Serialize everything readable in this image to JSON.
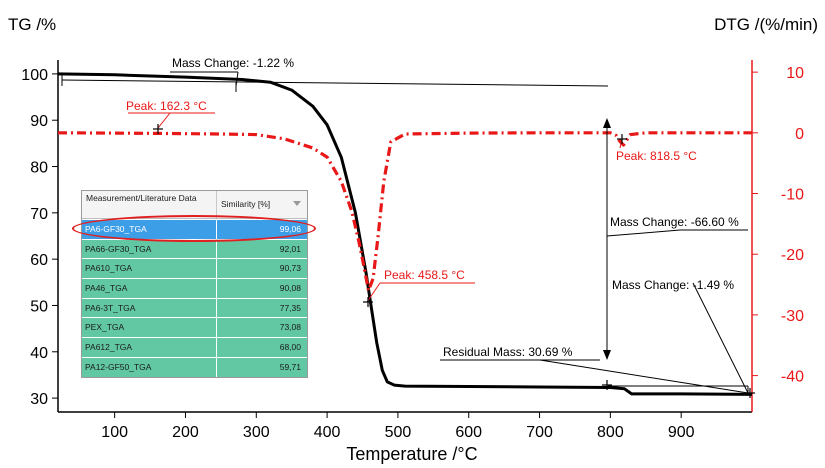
{
  "chart_data": {
    "type": "line",
    "xlabel": "Temperature /°C",
    "ylabel_left": "TG /%",
    "ylabel_right": "DTG /(%/min)",
    "xlim": [
      20,
      1000
    ],
    "ylim_left": [
      27,
      103
    ],
    "ylim_right": [
      -46,
      12
    ],
    "xticks": [
      100,
      200,
      300,
      400,
      500,
      600,
      700,
      800,
      900
    ],
    "yticks_left": [
      30,
      40,
      50,
      60,
      70,
      80,
      90,
      100
    ],
    "yticks_right": [
      -40,
      -30,
      -20,
      -10,
      0,
      10
    ],
    "grid": false,
    "colors": {
      "tg": "#000000",
      "dtg": "#e81818",
      "axis_right": "#e81818"
    },
    "series": [
      {
        "axis": "left",
        "style": "solid",
        "x": [
          20,
          100,
          200,
          280,
          320,
          350,
          380,
          400,
          420,
          440,
          455,
          462,
          470,
          478,
          485,
          495,
          510,
          600,
          700,
          800,
          820,
          830,
          900,
          1000
        ],
        "y": [
          100,
          99.8,
          99.3,
          98.8,
          98.2,
          96.5,
          93,
          89,
          82,
          70,
          57,
          50,
          42,
          36,
          33.5,
          32.8,
          32.6,
          32.5,
          32.4,
          32.3,
          32.0,
          30.9,
          30.9,
          30.8
        ]
      },
      {
        "axis": "right",
        "style": "dashdot",
        "x": [
          20,
          100,
          162,
          250,
          300,
          340,
          380,
          400,
          420,
          435,
          445,
          452,
          458.5,
          465,
          472,
          480,
          490,
          510,
          600,
          700,
          800,
          808,
          814,
          818.5,
          823,
          828,
          850,
          1000
        ],
        "y": [
          0,
          -0.05,
          -0.1,
          -0.2,
          -0.3,
          -1,
          -2.5,
          -4,
          -8,
          -13,
          -18,
          -22,
          -26,
          -24,
          -17,
          -8,
          -1.5,
          -0.2,
          -0.05,
          0,
          0,
          -0.4,
          -1.5,
          -2.0,
          -1.2,
          -0.3,
          0,
          0
        ]
      }
    ],
    "annotations": [
      {
        "text": "Mass Change: -1.22 %",
        "color": "#000000"
      },
      {
        "text": "Peak: 162.3 °C",
        "color": "#e81818"
      },
      {
        "text": "Peak: 818.5 °C",
        "color": "#e81818"
      },
      {
        "text": "Mass Change: -66.60 %",
        "color": "#000000"
      },
      {
        "text": "Peak: 458.5 °C",
        "color": "#e81818"
      },
      {
        "text": "Mass Change: -1.49 %",
        "color": "#000000"
      },
      {
        "text": "Residual Mass: 30.69 %",
        "color": "#000000"
      }
    ]
  },
  "table": {
    "header": {
      "col1": "Measurement/Literature Data",
      "col2": "Similarity [%]"
    },
    "rows": [
      {
        "name": "PA6-GF30_TGA",
        "value": "99,06"
      },
      {
        "name": "PA66-GF30_TGA",
        "value": "92,01"
      },
      {
        "name": "PA610_TGA",
        "value": "90,73"
      },
      {
        "name": "PA46_TGA",
        "value": "90,08"
      },
      {
        "name": "PA6-3T_TGA",
        "value": "77,35"
      },
      {
        "name": "PEX_TGA",
        "value": "73,08"
      },
      {
        "name": "PA612_TGA",
        "value": "68,00"
      },
      {
        "name": "PA12-GF50_TGA",
        "value": "59,71"
      }
    ]
  }
}
